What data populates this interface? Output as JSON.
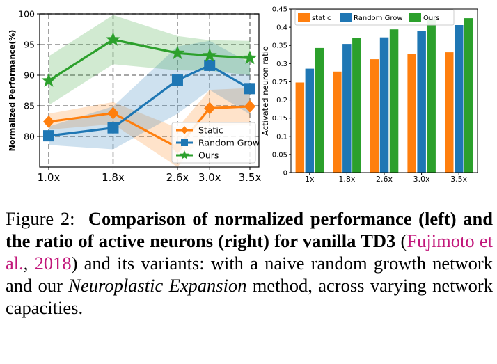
{
  "chart_data": [
    {
      "type": "line",
      "xlabel": "",
      "ylabel": "Normalized Performance(%)",
      "x_ticks": [
        "1.0x",
        "1.8x",
        "2.6x",
        "3.0x",
        "3.5x"
      ],
      "x": [
        1.0,
        1.8,
        2.6,
        3.0,
        3.5
      ],
      "ylim": [
        75,
        100
      ],
      "y_ticks": [
        80,
        85,
        90,
        95,
        100
      ],
      "grid": true,
      "legend": "lower-right",
      "series": [
        {
          "name": "Static",
          "color": "#ff7f0e",
          "marker": "diamond",
          "values": [
            82.4,
            83.8,
            78.2,
            84.6,
            84.9
          ],
          "band": [
            1.3,
            1.8,
            3.2,
            3.0,
            3.0
          ]
        },
        {
          "name": "Random Grow",
          "color": "#1f77b4",
          "marker": "square",
          "values": [
            80.1,
            81.4,
            89.2,
            91.6,
            87.8
          ],
          "band": [
            1.5,
            3.5,
            5.5,
            4.0,
            4.2
          ]
        },
        {
          "name": "Ours",
          "color": "#2ca02c",
          "marker": "star",
          "values": [
            89.1,
            95.8,
            93.6,
            93.2,
            92.8
          ],
          "band": [
            4.0,
            4.0,
            2.8,
            2.5,
            2.8
          ]
        }
      ]
    },
    {
      "type": "bar",
      "ylabel": "Activated neuron ratio",
      "categories": [
        "1x",
        "1.8x",
        "2.6x",
        "3.0x",
        "3.5x"
      ],
      "ylim": [
        0,
        0.45
      ],
      "y_ticks": [
        "0",
        "0.05",
        "0.1",
        "0.15",
        "0.2",
        "0.25",
        "0.3",
        "0.35",
        "0.4",
        "0.45"
      ],
      "grid": false,
      "legend": "top",
      "series": [
        {
          "name": "static",
          "color": "#ff7f0e",
          "values": [
            0.248,
            0.278,
            0.312,
            0.326,
            0.331
          ]
        },
        {
          "name": "Random Grow",
          "color": "#1f77b4",
          "values": [
            0.286,
            0.354,
            0.372,
            0.39,
            0.406
          ]
        },
        {
          "name": "Ours",
          "color": "#2ca02c",
          "values": [
            0.343,
            0.37,
            0.394,
            0.421,
            0.425
          ]
        }
      ]
    }
  ],
  "caption": {
    "label": "Figure 2:",
    "bold": "Comparison of normalized performance (left) and the ratio of active neurons (right) for vanilla TD3",
    "cite_open": " (",
    "cite_author": "Fujimoto et al.",
    "cite_sep": ", ",
    "cite_year": "2018",
    "cite_close": ")",
    "text1": " and its variants: with a naive random growth network and our ",
    "italic": "Neuroplastic Expansion",
    "text2": " method, across varying network capacities."
  }
}
